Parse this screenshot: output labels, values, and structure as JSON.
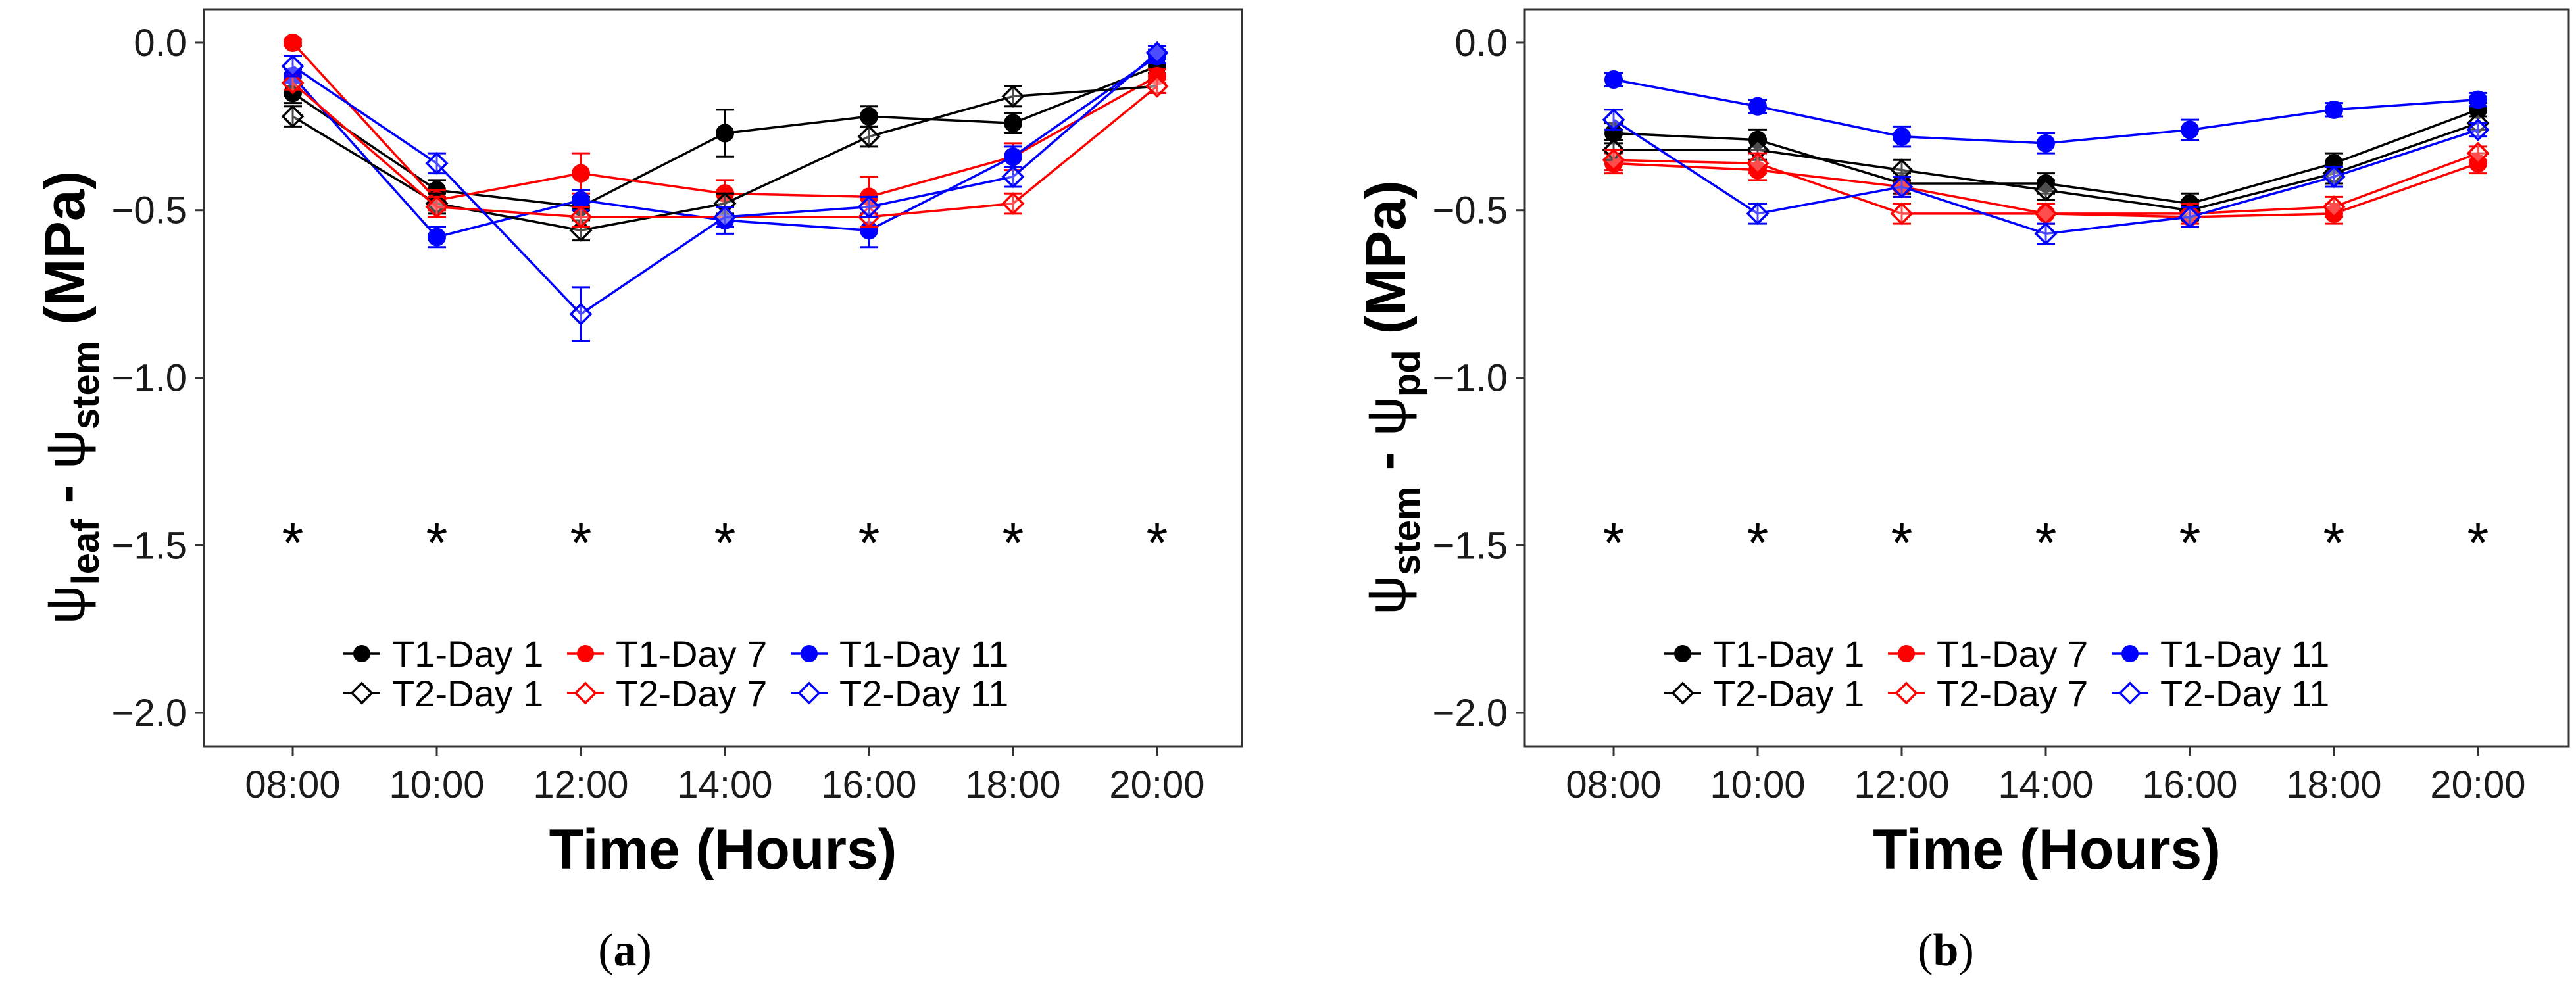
{
  "chart_data": [
    {
      "type": "line",
      "panel": "a",
      "panel_label": {
        "open": "(",
        "letter": "a",
        "close": ")"
      },
      "title": "",
      "xlabel": "Time (Hours)",
      "ylabel": {
        "psi": "ψ",
        "sub1": "leaf",
        "minus": " - ",
        "psi2": "ψ",
        "sub2": "stem",
        "unit": " (MPa)"
      },
      "categories": [
        "08:00",
        "10:00",
        "12:00",
        "14:00",
        "16:00",
        "18:00",
        "20:00"
      ],
      "ylim": [
        -2.1,
        0.1
      ],
      "yticks": [
        0.0,
        -0.5,
        -1.0,
        -1.5,
        -2.0
      ],
      "ytick_labels": [
        "0.0",
        "−0.5",
        "−1.0",
        "−1.5",
        "−2.0"
      ],
      "grid": false,
      "legend_position": "bottom-center",
      "annotations": {
        "symbol": "*",
        "y": -1.47,
        "categories": [
          "08:00",
          "10:00",
          "12:00",
          "14:00",
          "16:00",
          "18:00",
          "20:00"
        ]
      },
      "series": [
        {
          "name": "T1-Day 1",
          "color": "#000000",
          "marker": "filled-circle",
          "values": [
            -0.15,
            -0.44,
            -0.49,
            -0.27,
            -0.22,
            -0.24,
            -0.07
          ],
          "errors": [
            0.03,
            0.03,
            0.03,
            0.07,
            0.03,
            0.03,
            0.02
          ]
        },
        {
          "name": "T1-Day 7",
          "color": "#ff0000",
          "marker": "filled-circle",
          "values": [
            0.0,
            -0.47,
            -0.39,
            -0.45,
            -0.46,
            -0.34,
            -0.1
          ],
          "errors": [
            0.01,
            0.03,
            0.06,
            0.04,
            0.06,
            0.04,
            0.02
          ]
        },
        {
          "name": "T1-Day 11",
          "color": "#0000ff",
          "marker": "filled-circle",
          "values": [
            -0.1,
            -0.58,
            -0.47,
            -0.53,
            -0.56,
            -0.34,
            -0.04
          ],
          "errors": [
            0.02,
            0.03,
            0.03,
            0.04,
            0.05,
            0.03,
            0.02
          ]
        },
        {
          "name": "T2-Day 1",
          "color": "#000000",
          "marker": "open-diamond",
          "values": [
            -0.22,
            -0.48,
            -0.56,
            -0.48,
            -0.28,
            -0.16,
            -0.13
          ],
          "errors": [
            0.03,
            0.03,
            0.03,
            0.03,
            0.03,
            0.03,
            0.02
          ]
        },
        {
          "name": "T2-Day 7",
          "color": "#ff0000",
          "marker": "open-diamond",
          "values": [
            -0.12,
            -0.49,
            -0.52,
            -0.52,
            -0.52,
            -0.48,
            -0.13
          ],
          "errors": [
            0.02,
            0.03,
            0.03,
            0.03,
            0.03,
            0.03,
            0.02
          ]
        },
        {
          "name": "T2-Day 11",
          "color": "#0000ff",
          "marker": "open-diamond",
          "values": [
            -0.07,
            -0.36,
            -0.81,
            -0.52,
            -0.49,
            -0.4,
            -0.03
          ],
          "errors": [
            0.03,
            0.03,
            0.08,
            0.03,
            0.03,
            0.03,
            0.02
          ]
        }
      ]
    },
    {
      "type": "line",
      "panel": "b",
      "panel_label": {
        "open": "(",
        "letter": "b",
        "close": ")"
      },
      "title": "",
      "xlabel": "Time (Hours)",
      "ylabel": {
        "psi": "ψ",
        "sub1": "stem",
        "minus": " - ",
        "psi2": "ψ",
        "sub2": "pd",
        "unit": " (MPa)"
      },
      "categories": [
        "08:00",
        "10:00",
        "12:00",
        "14:00",
        "16:00",
        "18:00",
        "20:00"
      ],
      "ylim": [
        -2.1,
        0.1
      ],
      "yticks": [
        0.0,
        -0.5,
        -1.0,
        -1.5,
        -2.0
      ],
      "ytick_labels": [
        "0.0",
        "−0.5",
        "−1.0",
        "−1.5",
        "−2.0"
      ],
      "grid": false,
      "legend_position": "bottom-center",
      "annotations": {
        "symbol": "*",
        "y": -1.47,
        "categories": [
          "08:00",
          "10:00",
          "12:00",
          "14:00",
          "16:00",
          "18:00",
          "20:00"
        ]
      },
      "series": [
        {
          "name": "T1-Day 1",
          "color": "#000000",
          "marker": "filled-circle",
          "values": [
            -0.27,
            -0.29,
            -0.42,
            -0.42,
            -0.48,
            -0.36,
            -0.2
          ],
          "errors": [
            0.03,
            0.03,
            0.03,
            0.03,
            0.03,
            0.03,
            0.02
          ]
        },
        {
          "name": "T1-Day 7",
          "color": "#ff0000",
          "marker": "filled-circle",
          "values": [
            -0.36,
            -0.38,
            -0.43,
            -0.51,
            -0.52,
            -0.51,
            -0.36
          ],
          "errors": [
            0.03,
            0.03,
            0.03,
            0.03,
            0.03,
            0.03,
            0.03
          ]
        },
        {
          "name": "T1-Day 11",
          "color": "#0000ff",
          "marker": "filled-circle",
          "values": [
            -0.11,
            -0.19,
            -0.28,
            -0.3,
            -0.26,
            -0.2,
            -0.17
          ],
          "errors": [
            0.02,
            0.02,
            0.03,
            0.03,
            0.03,
            0.02,
            0.02
          ]
        },
        {
          "name": "T2-Day 1",
          "color": "#000000",
          "marker": "open-diamond",
          "values": [
            -0.32,
            -0.32,
            -0.38,
            -0.44,
            -0.5,
            -0.39,
            -0.24
          ],
          "errors": [
            0.03,
            0.03,
            0.03,
            0.03,
            0.03,
            0.03,
            0.02
          ]
        },
        {
          "name": "T2-Day 7",
          "color": "#ff0000",
          "marker": "open-diamond",
          "values": [
            -0.35,
            -0.36,
            -0.51,
            -0.51,
            -0.51,
            -0.49,
            -0.33
          ],
          "errors": [
            0.03,
            0.03,
            0.03,
            0.03,
            0.03,
            0.03,
            0.02
          ]
        },
        {
          "name": "T2-Day 11",
          "color": "#0000ff",
          "marker": "open-diamond",
          "values": [
            -0.23,
            -0.51,
            -0.43,
            -0.57,
            -0.52,
            -0.4,
            -0.26
          ],
          "errors": [
            0.03,
            0.03,
            0.03,
            0.03,
            0.03,
            0.03,
            0.02
          ]
        }
      ]
    }
  ]
}
